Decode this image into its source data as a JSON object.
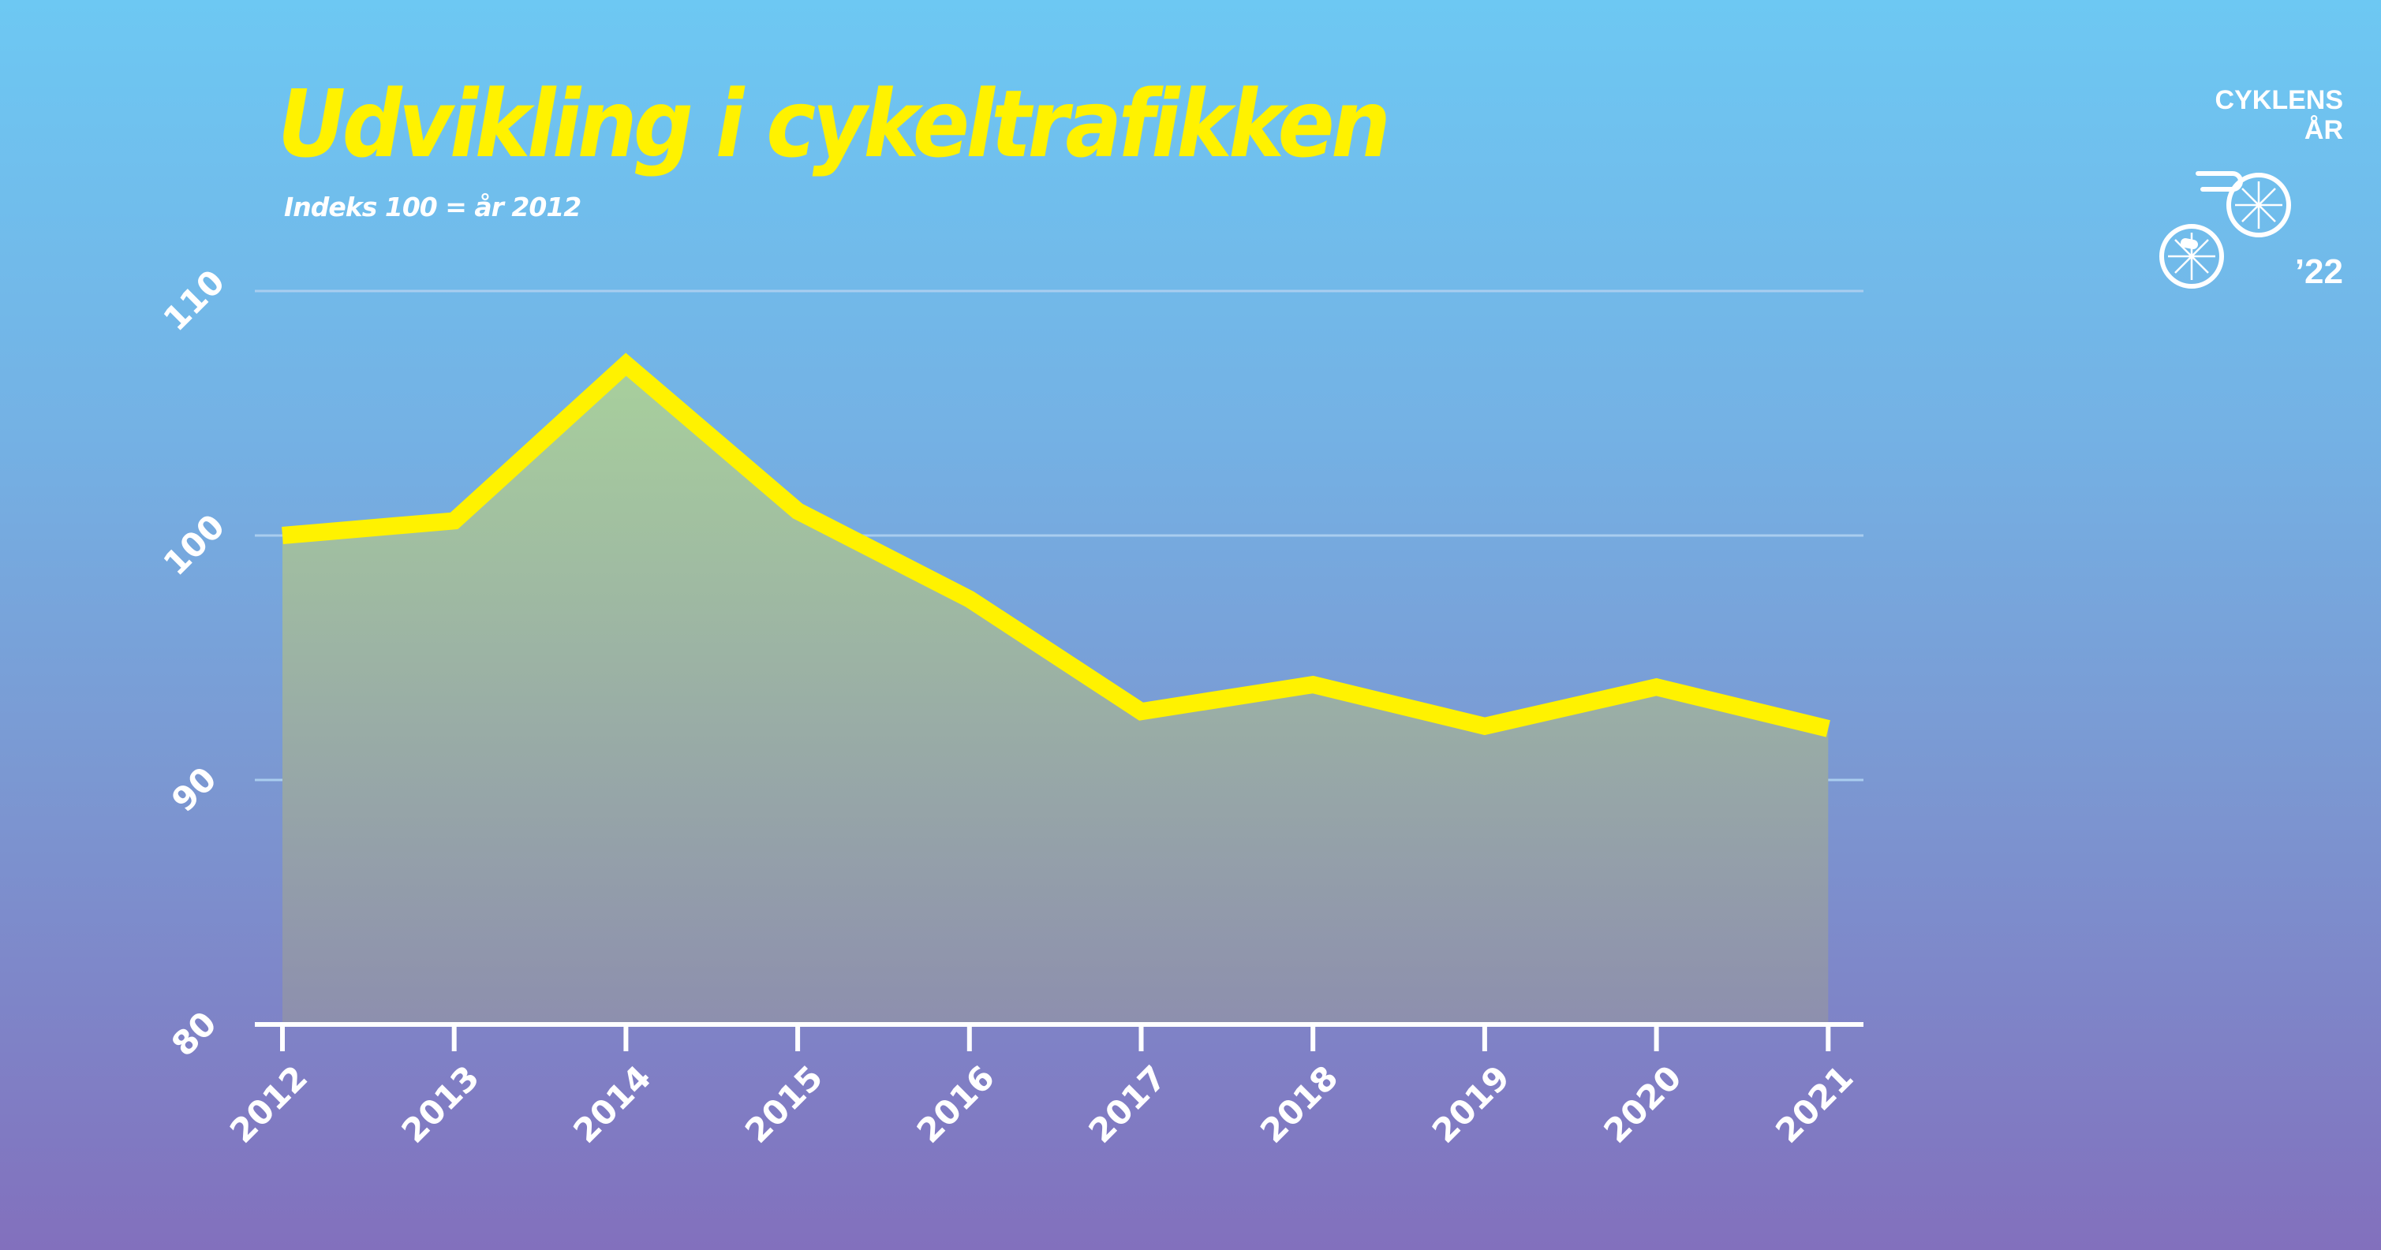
{
  "title": "Udvikling i cykeltrafikken",
  "subtitle": "Indeks 100 = år 2012",
  "logo": {
    "line1": "CYKLENS",
    "line2": "ÅR",
    "year": "’22",
    "icon": "bicycle-wheels-icon"
  },
  "colors": {
    "line": "#fff200",
    "area_top": "#a8d09c",
    "area_bottom": "#8d8fae",
    "axis": "#ffffff",
    "gridline": "#a9cdef",
    "title": "#fff200",
    "text": "#ffffff"
  },
  "chart_data": {
    "type": "area",
    "x": [
      "2012",
      "2013",
      "2014",
      "2015",
      "2016",
      "2017",
      "2018",
      "2019",
      "2020",
      "2021"
    ],
    "series": [
      {
        "values": [
          100,
          100.6,
          107,
          101,
          97.4,
          92.8,
          93.9,
          92.2,
          93.8,
          92.1
        ]
      }
    ],
    "ylim": [
      80,
      110
    ],
    "yticks": [
      "80",
      "90",
      "100",
      "110"
    ],
    "grid": true,
    "legend": false,
    "xlabel": "",
    "ylabel": ""
  }
}
